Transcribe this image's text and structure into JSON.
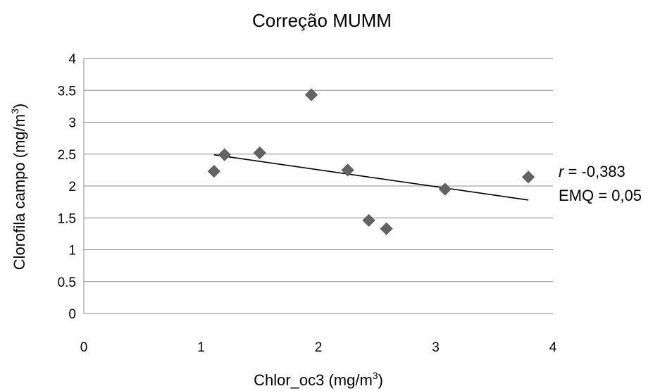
{
  "chart_data": {
    "type": "scatter",
    "title": "Correção MUMM",
    "xlabel": {
      "main": "Chlor_oc3 (mg/m",
      "sup": "3",
      "end": ")"
    },
    "ylabel": {
      "main": "Clorofila campo (mg/m",
      "sup": "3",
      "end": ")"
    },
    "xlim": [
      0,
      4
    ],
    "ylim": [
      0,
      4
    ],
    "x_ticks": [
      0,
      1,
      2,
      3,
      4
    ],
    "y_ticks": [
      0,
      0.5,
      1,
      1.5,
      2,
      2.5,
      3,
      3.5,
      4
    ],
    "x_tick_labels": [
      "0",
      "1",
      "2",
      "3",
      "4"
    ],
    "y_tick_labels": [
      "0",
      "0.5",
      "1",
      "1.5",
      "2",
      "2.5",
      "3",
      "3.5",
      "4"
    ],
    "grid": {
      "horizontal": true,
      "vertical": false
    },
    "points": [
      {
        "x": 1.11,
        "y": 2.23
      },
      {
        "x": 1.2,
        "y": 2.49
      },
      {
        "x": 1.5,
        "y": 2.52
      },
      {
        "x": 1.94,
        "y": 3.43
      },
      {
        "x": 2.25,
        "y": 2.25
      },
      {
        "x": 2.43,
        "y": 1.46
      },
      {
        "x": 2.58,
        "y": 1.33
      },
      {
        "x": 3.08,
        "y": 1.95
      },
      {
        "x": 3.79,
        "y": 2.14
      }
    ],
    "trendline": {
      "x": [
        1.11,
        3.79
      ],
      "y": [
        2.49,
        1.78
      ]
    },
    "annotations": {
      "r_symbol": "r",
      "r_value": " = -0,383",
      "emq": "EMQ = 0,05"
    },
    "colors": {
      "marker": "#636363",
      "trendline": "#000000",
      "grid": "#8c8c8c",
      "axis": "#8c8c8c"
    }
  }
}
